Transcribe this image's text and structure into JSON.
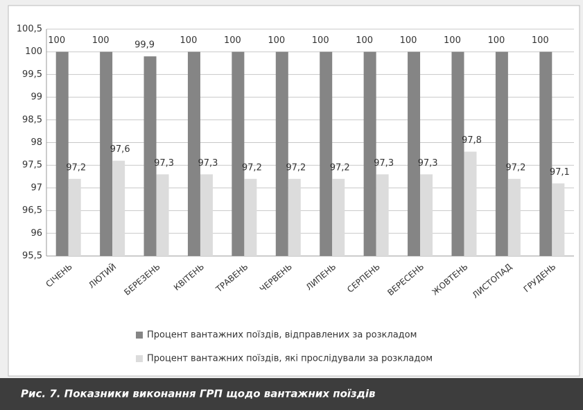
{
  "chart_data": {
    "type": "bar",
    "caption": "Рис. 7. Показники виконання ГРП щодо вантажних поїздів",
    "categories": [
      "СІЧЕНЬ",
      "ЛЮТИЙ",
      "БЕРЕЗЕНЬ",
      "КВІТЕНЬ",
      "ТРАВЕНЬ",
      "ЧЕРВЕНЬ",
      "ЛИПЕНЬ",
      "СЕРПЕНЬ",
      "ВЕРЕСЕНЬ",
      "ЖОВТЕНЬ",
      "ЛИСТОПАД",
      "ГРУДЕНЬ"
    ],
    "series": [
      {
        "name": "Процент вантажних поїздів, відправлених за розкладом",
        "color": "#858585",
        "values": [
          100,
          100,
          99.9,
          100,
          100,
          100,
          100,
          100,
          100,
          100,
          100,
          100
        ],
        "value_labels": [
          "100",
          "100",
          "99,9",
          "100",
          "100",
          "100",
          "100",
          "100",
          "100",
          "100",
          "100",
          "100"
        ]
      },
      {
        "name": "Процент вантажних поїздів, які прослідували за розкладом",
        "color": "#dcdcdc",
        "values": [
          97.2,
          97.6,
          97.3,
          97.3,
          97.2,
          97.2,
          97.2,
          97.3,
          97.3,
          97.8,
          97.2,
          97.1
        ],
        "value_labels": [
          "97,2",
          "97,6",
          "97,3",
          "97,3",
          "97,2",
          "97,2",
          "97,2",
          "97,3",
          "97,3",
          "97,8",
          "97,2",
          "97,1"
        ]
      }
    ],
    "ylim": [
      95.5,
      100.5
    ],
    "yticks": [
      {
        "value": 95.5,
        "label": "95,5"
      },
      96,
      {
        "value": 96.5,
        "label": "96,5"
      },
      97,
      {
        "value": 97.5,
        "label": "97,5"
      },
      98,
      {
        "value": 98.5,
        "label": "98,5"
      },
      99,
      {
        "value": 99.5,
        "label": "99,5"
      },
      100,
      {
        "value": 100.5,
        "label": "100,5"
      }
    ],
    "grid": true
  }
}
